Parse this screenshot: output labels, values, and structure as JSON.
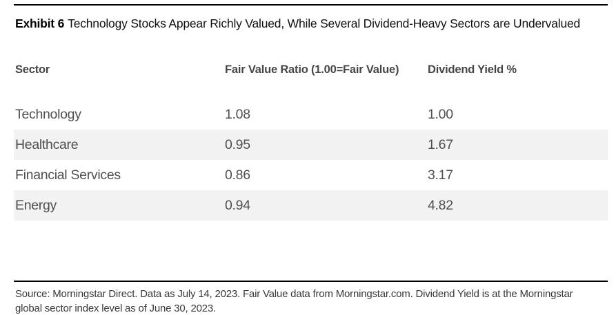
{
  "title": {
    "prefix": "Exhibit 6",
    "text": "Technology Stocks Appear Richly Valued, While Several Dividend-Heavy Sectors are Undervalued"
  },
  "table": {
    "columns": [
      "Sector",
      "Fair Value Ratio (1.00=Fair Value)",
      "Dividend Yield %"
    ],
    "rows": [
      {
        "sector": "Technology",
        "fair_value_ratio": "1.08",
        "dividend_yield": "1.00"
      },
      {
        "sector": "Healthcare",
        "fair_value_ratio": "0.95",
        "dividend_yield": "1.67"
      },
      {
        "sector": "Financial Services",
        "fair_value_ratio": "0.86",
        "dividend_yield": "3.17"
      },
      {
        "sector": "Energy",
        "fair_value_ratio": "0.94",
        "dividend_yield": "4.82"
      }
    ]
  },
  "source_note": "Source: Morningstar Direct. Data as July 14, 2023. Fair Value data from Morningstar.com. Dividend Yield is at the Morningstar global sector index level as of June 30, 2023.",
  "colors": {
    "stripe": "#f2f2f2",
    "rule": "#000000",
    "header_text": "#464646",
    "row_text": "#4f4f4f"
  },
  "chart_data": {
    "type": "table",
    "title": "Exhibit 6 Technology Stocks Appear Richly Valued, While Several Dividend-Heavy Sectors are Undervalued",
    "columns": [
      "Sector",
      "Fair Value Ratio (1.00=Fair Value)",
      "Dividend Yield %"
    ],
    "rows": [
      [
        "Technology",
        1.08,
        1.0
      ],
      [
        "Healthcare",
        0.95,
        1.67
      ],
      [
        "Financial Services",
        0.86,
        3.17
      ],
      [
        "Energy",
        0.94,
        4.82
      ]
    ]
  }
}
